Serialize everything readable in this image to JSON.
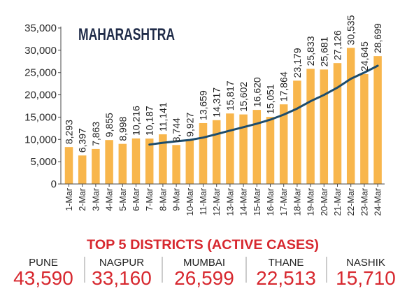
{
  "chart_data": {
    "type": "bar",
    "title": "MAHARASHTRA",
    "categories": [
      "1-Mar",
      "2-Mar",
      "3-Mar",
      "4-Mar",
      "5-Mar",
      "6-Mar",
      "7-Mar",
      "8-Mar",
      "9-Mar",
      "10-Mar",
      "11-Mar",
      "12-Mar",
      "13-Mar",
      "14-Mar",
      "15-Mar",
      "16-Mar",
      "17-Mar",
      "18-Mar",
      "19-Mar",
      "20-Mar",
      "21-Mar",
      "22-Mar",
      "23-Mar",
      "24-Mar"
    ],
    "series": [
      {
        "type": "bar",
        "values": [
          8293,
          6397,
          7863,
          9855,
          8998,
          10216,
          10187,
          11141,
          8744,
          9927,
          13659,
          14317,
          15817,
          15602,
          16620,
          15051,
          17864,
          23179,
          25833,
          25681,
          27126,
          30535,
          24645,
          28699
        ],
        "labels": [
          "8,293",
          "6,397",
          "7,863",
          "9,855",
          "8,998",
          "10,216",
          "10,187",
          "11,141",
          "8,744",
          "9,927",
          "13,659",
          "14,317",
          "15,817",
          "15,602",
          "16,620",
          "15,051",
          "17,864",
          "23,179",
          "25,833",
          "25,681",
          "27,126",
          "30,535",
          "24,645",
          "28,699"
        ]
      },
      {
        "type": "line",
        "x": [
          "7-Mar",
          "8-Mar",
          "9-Mar",
          "10-Mar",
          "11-Mar",
          "12-Mar",
          "13-Mar",
          "14-Mar",
          "15-Mar",
          "16-Mar",
          "17-Mar",
          "18-Mar",
          "19-Mar",
          "20-Mar",
          "21-Mar",
          "22-Mar",
          "23-Mar",
          "24-Mar"
        ],
        "values": [
          8830,
          9237,
          9572,
          9867,
          10410,
          11170,
          11970,
          12744,
          13527,
          14428,
          15561,
          16921,
          18567,
          19976,
          21622,
          23610,
          24980,
          26528
        ]
      }
    ],
    "ylim": [
      0,
      35000
    ],
    "y_ticks": [
      0,
      5000,
      10000,
      15000,
      20000,
      25000,
      30000,
      35000
    ],
    "y_tick_labels": [
      "0",
      "5,000",
      "10,000",
      "15,000",
      "20,000",
      "25,000",
      "30,000",
      "35,000"
    ],
    "grid": false,
    "legend": "none",
    "colors": {
      "bars": "#F8B64C",
      "trend_line": "#1D4C6C",
      "title": "#1F2B48",
      "axis": "#4A4A4A"
    }
  },
  "districts": {
    "heading": "TOP 5 DISTRICTS (ACTIVE CASES)",
    "color": "#D7282F",
    "items": [
      {
        "name": "PUNE",
        "active_cases": "43,590"
      },
      {
        "name": "NAGPUR",
        "active_cases": "33,160"
      },
      {
        "name": "MUMBAI",
        "active_cases": "26,599"
      },
      {
        "name": "THANE",
        "active_cases": "22,513"
      },
      {
        "name": "NASHIK",
        "active_cases": "15,710"
      }
    ]
  }
}
